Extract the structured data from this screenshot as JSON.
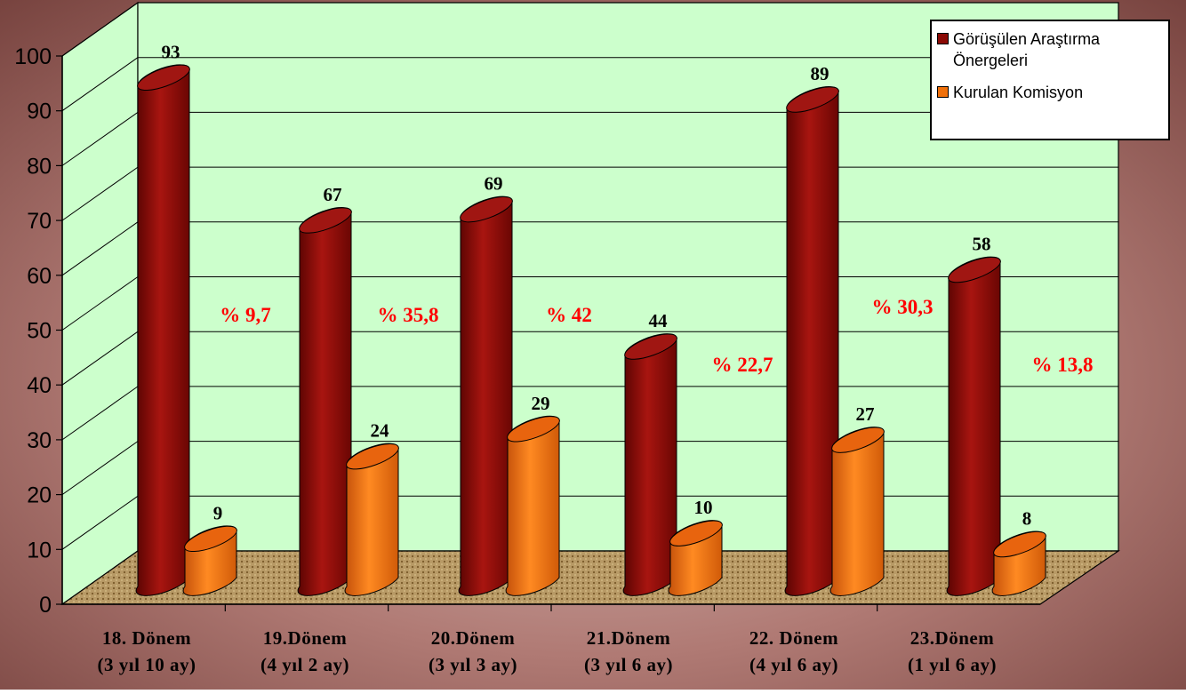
{
  "chart_data": {
    "type": "bar",
    "title": "",
    "xlabel": "",
    "ylabel": "",
    "ylim": [
      0,
      100
    ],
    "yticks": [
      "0",
      "10",
      "20",
      "30",
      "40",
      "50",
      "60",
      "70",
      "80",
      "90",
      "100"
    ],
    "grid": true,
    "legend_position": "top-right",
    "categories": [
      {
        "line1": "18. Dönem",
        "line2": "(3 yıl 10 ay)"
      },
      {
        "line1": "19.Dönem",
        "line2": "(4 yıl 2 ay)"
      },
      {
        "line1": "20.Dönem",
        "line2": "(3 yıl 3 ay)"
      },
      {
        "line1": "21.Dönem",
        "line2": "(3 yıl 6 ay)"
      },
      {
        "line1": "22. Dönem",
        "line2": "(4 yıl 6 ay)"
      },
      {
        "line1": "23.Dönem",
        "line2": "(1 yıl 6 ay)"
      }
    ],
    "series": [
      {
        "name": "Görüşülen  Araştırma Önergeleri",
        "values": [
          93,
          67,
          69,
          44,
          89,
          58
        ],
        "labels": [
          "93",
          "67",
          "69",
          "44",
          "89",
          "58"
        ],
        "color": "#8b0a05"
      },
      {
        "name": "Kurulan Komisyon",
        "values": [
          9,
          24,
          29,
          10,
          27,
          8
        ],
        "labels": [
          "9",
          "24",
          "29",
          "10",
          "27",
          "8"
        ],
        "color": "#f0700a"
      }
    ],
    "annotations": [
      "% 9,7",
      "% 35,8",
      "% 42",
      "% 22,7",
      "% 30,3",
      "% 13,8"
    ],
    "colors": {
      "wall": "#ccffcc",
      "floor": "#b89a66",
      "annotation": "#ff0000"
    }
  }
}
